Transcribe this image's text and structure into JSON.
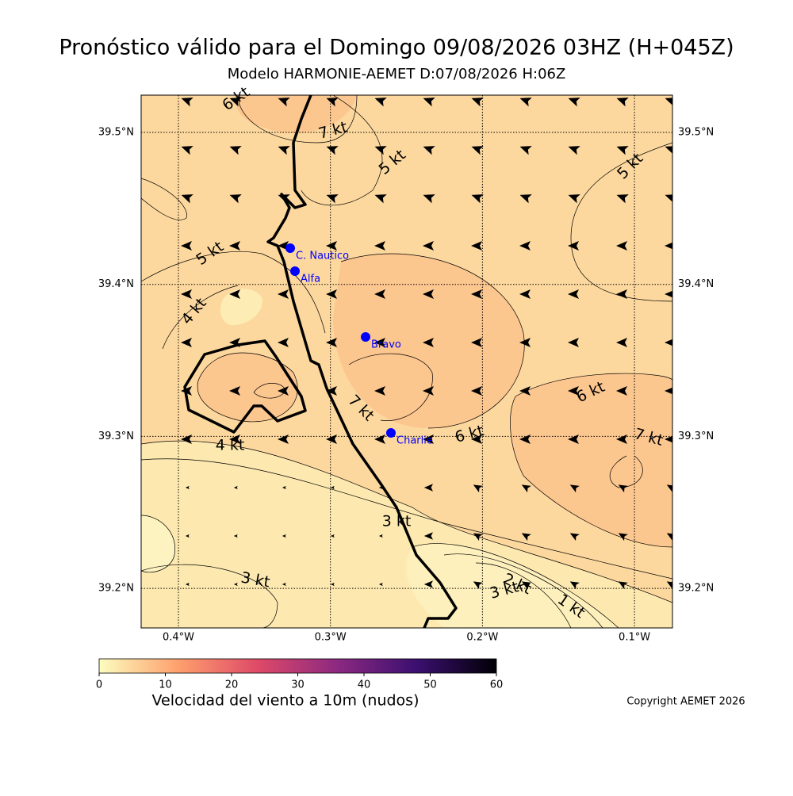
{
  "header": {
    "title": "Pronóstico válido para el Domingo 09/08/2026 03HZ (H+045Z)",
    "subtitle": "Modelo HARMONIE-AEMET D:07/08/2026 H:06Z"
  },
  "map": {
    "lonlim": [
      -0.4245,
      -0.075
    ],
    "latlim": [
      39.174,
      39.5245
    ],
    "lon_ticks": [
      {
        "value": -0.4,
        "label": "0.4°W"
      },
      {
        "value": -0.3,
        "label": "0.3°W"
      },
      {
        "value": -0.2,
        "label": "0.2°W"
      },
      {
        "value": -0.1,
        "label": "0.1°W"
      }
    ],
    "lat_ticks": [
      {
        "value": 39.5,
        "label": "39.5°N"
      },
      {
        "value": 39.4,
        "label": "39.4°N"
      },
      {
        "value": 39.3,
        "label": "39.3°N"
      },
      {
        "value": 39.2,
        "label": "39.2°N"
      }
    ],
    "stations": [
      "C. Nautico",
      "Alfa",
      "Bravo",
      "Charlie"
    ],
    "contour_labels": [
      "6 kt",
      "7 kt",
      "5 kt",
      "5 kt",
      "5 kt",
      "4 kt",
      "7 kt",
      "6 kt",
      "6 kt",
      "7 kt",
      "4 kt",
      "3 kt",
      "3 kt",
      "2 kt",
      "3 kt",
      "1 kt"
    ]
  },
  "colorbar": {
    "label": "Velocidad del viento a 10m (nudos)",
    "lim": [
      0,
      60
    ],
    "ticks": [
      0,
      10,
      20,
      30,
      40,
      50,
      60
    ]
  },
  "copyright": "Copyright AEMET 2026"
}
